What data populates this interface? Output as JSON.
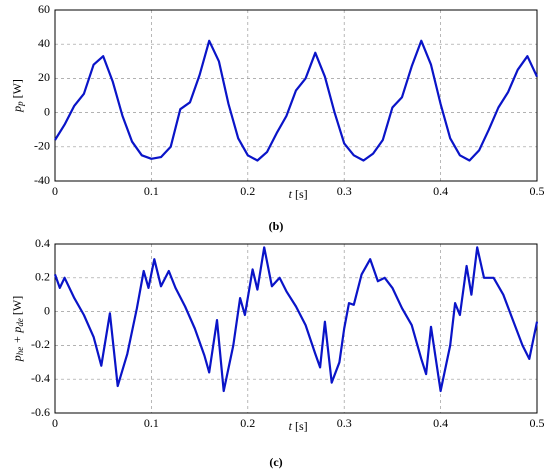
{
  "chart_data": [
    {
      "type": "line",
      "caption": "(b)",
      "xlabel": {
        "var": "t",
        "unit": "[s]"
      },
      "ylabel": [
        {
          "text": "p",
          "sub": false
        },
        {
          "text": "p",
          "sub": true
        },
        {
          "text": " [W]",
          "sub": false
        }
      ],
      "xlim": [
        0,
        0.5
      ],
      "xticks": [
        0,
        0.1,
        0.2,
        0.3,
        0.4,
        0.5
      ],
      "ylim": [
        -40,
        60
      ],
      "yticks": [
        -40,
        -20,
        0,
        20,
        40,
        60
      ],
      "grid": true,
      "series": [
        {
          "color": "#0a14c8",
          "x": [
            0,
            0.01,
            0.02,
            0.03,
            0.04,
            0.05,
            0.06,
            0.07,
            0.08,
            0.09,
            0.1,
            0.11,
            0.12,
            0.13,
            0.14,
            0.15,
            0.16,
            0.17,
            0.18,
            0.19,
            0.2,
            0.21,
            0.22,
            0.23,
            0.24,
            0.25,
            0.26,
            0.27,
            0.28,
            0.29,
            0.3,
            0.31,
            0.32,
            0.33,
            0.34,
            0.35,
            0.36,
            0.37,
            0.38,
            0.39,
            0.4,
            0.41,
            0.42,
            0.43,
            0.44,
            0.45,
            0.46,
            0.47,
            0.48,
            0.49,
            0.5
          ],
          "values": [
            -16,
            -7,
            4,
            11,
            28,
            33,
            18,
            -2,
            -17,
            -25,
            -27,
            -26,
            -20,
            2,
            6,
            22,
            42,
            30,
            5,
            -15,
            -25,
            -28,
            -23,
            -12,
            -2,
            13,
            20,
            35,
            21,
            0,
            -18,
            -25,
            -28,
            -24,
            -16,
            3,
            9,
            27,
            42,
            28,
            5,
            -15,
            -25,
            -28,
            -22,
            -10,
            3,
            12,
            25,
            33,
            21
          ]
        }
      ]
    },
    {
      "type": "line",
      "caption": "(c)",
      "xlabel": {
        "var": "t",
        "unit": "[s]"
      },
      "ylabel": [
        {
          "text": "p",
          "sub": false
        },
        {
          "text": "he",
          "sub": true
        },
        {
          "text": " + p",
          "sub": false
        },
        {
          "text": "de",
          "sub": true
        },
        {
          "text": " [W]",
          "sub": false
        }
      ],
      "xlim": [
        0,
        0.5
      ],
      "xticks": [
        0,
        0.1,
        0.2,
        0.3,
        0.4,
        0.5
      ],
      "ylim": [
        -0.6,
        0.4
      ],
      "yticks": [
        -0.6,
        -0.4,
        -0.2,
        0,
        0.2,
        0.4
      ],
      "grid": true,
      "series": [
        {
          "color": "#0a14c8",
          "x": [
            0,
            0.005,
            0.01,
            0.02,
            0.03,
            0.04,
            0.048,
            0.057,
            0.065,
            0.075,
            0.085,
            0.092,
            0.097,
            0.103,
            0.11,
            0.118,
            0.125,
            0.135,
            0.145,
            0.155,
            0.16,
            0.168,
            0.175,
            0.185,
            0.192,
            0.197,
            0.205,
            0.21,
            0.217,
            0.225,
            0.233,
            0.24,
            0.25,
            0.26,
            0.27,
            0.275,
            0.28,
            0.287,
            0.295,
            0.3,
            0.305,
            0.31,
            0.318,
            0.327,
            0.335,
            0.342,
            0.35,
            0.36,
            0.37,
            0.38,
            0.385,
            0.39,
            0.4,
            0.41,
            0.415,
            0.42,
            0.427,
            0.432,
            0.438,
            0.445,
            0.455,
            0.465,
            0.475,
            0.485,
            0.492,
            0.5
          ],
          "values": [
            0.22,
            0.14,
            0.2,
            0.08,
            -0.02,
            -0.15,
            -0.32,
            -0.01,
            -0.44,
            -0.25,
            0.02,
            0.24,
            0.14,
            0.31,
            0.15,
            0.24,
            0.14,
            0.03,
            -0.1,
            -0.26,
            -0.36,
            -0.05,
            -0.47,
            -0.2,
            0.08,
            -0.02,
            0.25,
            0.13,
            0.38,
            0.15,
            0.2,
            0.12,
            0.03,
            -0.08,
            -0.25,
            -0.33,
            -0.06,
            -0.42,
            -0.3,
            -0.1,
            0.05,
            0.04,
            0.22,
            0.31,
            0.18,
            0.2,
            0.14,
            0.02,
            -0.08,
            -0.28,
            -0.37,
            -0.09,
            -0.47,
            -0.2,
            0.05,
            -0.02,
            0.27,
            0.1,
            0.38,
            0.2,
            0.2,
            0.1,
            -0.05,
            -0.2,
            -0.28,
            -0.06
          ]
        }
      ]
    }
  ]
}
